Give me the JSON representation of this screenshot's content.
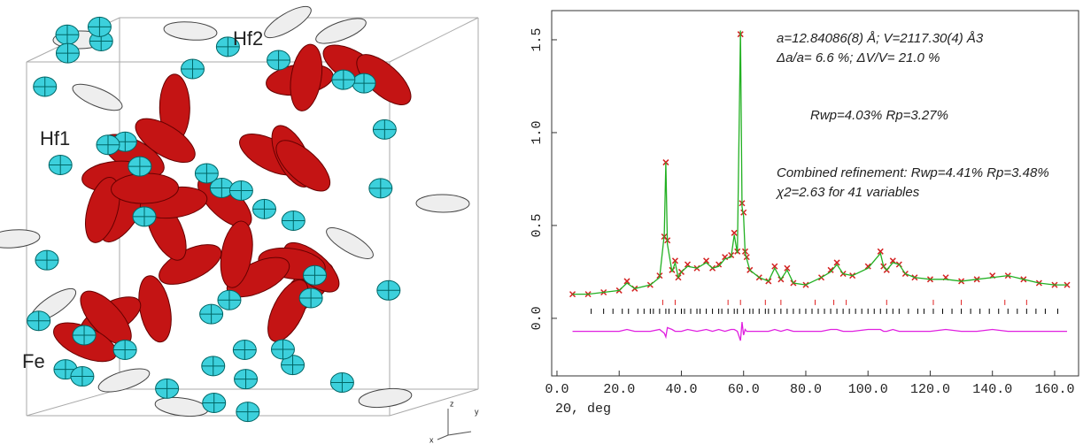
{
  "structure": {
    "labels": [
      "Hf2",
      "Hf1",
      "Fe"
    ],
    "axes": [
      "z",
      "y",
      "x"
    ]
  },
  "chart_data": {
    "type": "line",
    "xlabel": "2Θ, deg",
    "annotations": [
      "a=12.84086(8) Å; V=2117.30(4) Å3",
      "Δa/a= 6.6 %; ΔV/V= 21.0 %",
      "Rwp=4.03% Rp=3.27%",
      "Combined refinement: Rwp=4.41% Rp=3.48%",
      "χ2=2.63 for 41 variables"
    ],
    "xlim": [
      -1.7,
      167.7
    ],
    "ylim": [
      -0.31,
      1.657
    ],
    "xticks": [
      {
        "value": 0,
        "label": "0.0"
      },
      {
        "value": 20,
        "label": "20.0"
      },
      {
        "value": 40,
        "label": "40.0"
      },
      {
        "value": 60,
        "label": "60.0"
      },
      {
        "value": 80,
        "label": "80.0"
      },
      {
        "value": 100,
        "label": "100.0"
      },
      {
        "value": 120,
        "label": "120.0"
      },
      {
        "value": 140,
        "label": "140.0"
      },
      {
        "value": 160,
        "label": "160.0"
      }
    ],
    "yticks": [
      {
        "value": 0,
        "label": "0.0"
      },
      {
        "value": 0.5,
        "label": "0.5"
      },
      {
        "value": 1,
        "label": "1.0"
      },
      {
        "value": 1.5,
        "label": "1.5"
      }
    ],
    "x": [
      5,
      10,
      15,
      20,
      22.5,
      25,
      30,
      33,
      34.5,
      35,
      35.5,
      37,
      38,
      39,
      40,
      42,
      45,
      48,
      50,
      52,
      54,
      56,
      57,
      58,
      59,
      59.5,
      60,
      60.5,
      61,
      62,
      65,
      68,
      70,
      72,
      74,
      76,
      80,
      85,
      88,
      90,
      92,
      95,
      100,
      104,
      105,
      106,
      108,
      110,
      112,
      115,
      120,
      125,
      130,
      135,
      140,
      145,
      150,
      155,
      160,
      164
    ],
    "series": [
      {
        "color": "#d42020",
        "marker": "cross",
        "values": [
          0.13,
          0.13,
          0.14,
          0.15,
          0.2,
          0.16,
          0.18,
          0.23,
          0.44,
          0.84,
          0.42,
          0.26,
          0.31,
          0.22,
          0.25,
          0.29,
          0.27,
          0.31,
          0.27,
          0.29,
          0.33,
          0.34,
          0.46,
          0.36,
          1.53,
          0.62,
          0.57,
          0.36,
          0.33,
          0.26,
          0.22,
          0.2,
          0.28,
          0.21,
          0.27,
          0.19,
          0.18,
          0.22,
          0.26,
          0.3,
          0.24,
          0.23,
          0.28,
          0.36,
          0.28,
          0.26,
          0.31,
          0.29,
          0.24,
          0.22,
          0.21,
          0.22,
          0.2,
          0.21,
          0.23,
          0.23,
          0.21,
          0.19,
          0.18,
          0.18
        ]
      },
      {
        "color": "#22b022",
        "marker": "line",
        "values": [
          0.13,
          0.13,
          0.14,
          0.15,
          0.19,
          0.16,
          0.18,
          0.22,
          0.45,
          0.84,
          0.4,
          0.25,
          0.3,
          0.22,
          0.25,
          0.28,
          0.27,
          0.3,
          0.27,
          0.28,
          0.32,
          0.33,
          0.45,
          0.35,
          1.55,
          0.6,
          0.55,
          0.35,
          0.32,
          0.26,
          0.22,
          0.2,
          0.27,
          0.21,
          0.26,
          0.19,
          0.18,
          0.22,
          0.25,
          0.29,
          0.24,
          0.23,
          0.27,
          0.35,
          0.28,
          0.26,
          0.3,
          0.29,
          0.24,
          0.22,
          0.21,
          0.21,
          0.2,
          0.21,
          0.22,
          0.23,
          0.21,
          0.19,
          0.18,
          0.18
        ]
      },
      {
        "color": "#e020e0",
        "marker": "line",
        "values": [
          -0.07,
          -0.07,
          -0.07,
          -0.07,
          -0.06,
          -0.07,
          -0.07,
          -0.06,
          -0.08,
          -0.1,
          -0.05,
          -0.06,
          -0.07,
          -0.07,
          -0.07,
          -0.06,
          -0.07,
          -0.06,
          -0.07,
          -0.06,
          -0.07,
          -0.06,
          -0.06,
          -0.07,
          -0.12,
          -0.02,
          -0.09,
          -0.06,
          -0.07,
          -0.07,
          -0.07,
          -0.07,
          -0.06,
          -0.07,
          -0.06,
          -0.07,
          -0.07,
          -0.07,
          -0.06,
          -0.06,
          -0.07,
          -0.07,
          -0.06,
          -0.06,
          -0.07,
          -0.07,
          -0.06,
          -0.07,
          -0.07,
          -0.07,
          -0.07,
          -0.06,
          -0.07,
          -0.07,
          -0.06,
          -0.07,
          -0.07,
          -0.07,
          -0.07,
          -0.07
        ]
      }
    ],
    "reflections": [
      {
        "color": "#000000",
        "x": [
          11,
          15,
          18,
          21,
          23,
          26,
          28,
          30,
          31,
          33,
          35,
          36,
          38,
          40,
          41,
          43,
          45,
          46,
          48,
          50,
          52,
          53,
          55,
          57,
          58,
          60,
          62,
          63,
          65,
          67,
          68,
          70,
          72,
          74,
          76,
          78,
          80,
          82,
          84,
          86,
          88,
          90,
          92,
          94,
          96,
          98,
          100,
          102,
          104,
          106,
          108,
          110,
          113,
          116,
          118,
          121,
          124,
          127,
          130,
          133,
          136,
          139,
          142,
          145,
          148,
          151,
          154,
          157,
          161
        ]
      },
      {
        "color": "#e02020",
        "x": [
          34,
          38,
          55,
          59,
          67,
          72,
          83,
          89,
          93,
          106,
          121,
          130,
          144,
          151
        ]
      }
    ]
  }
}
